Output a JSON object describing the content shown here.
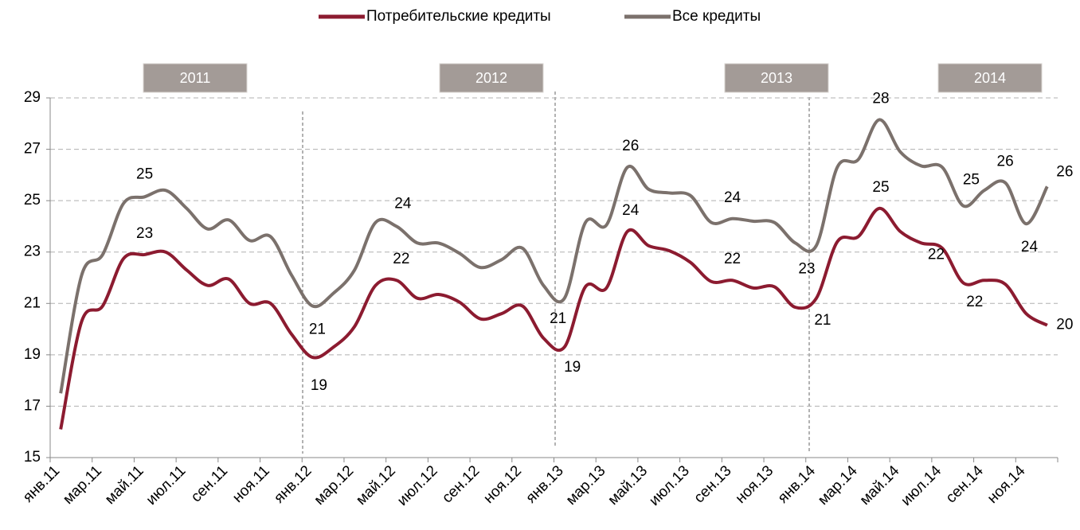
{
  "chart_data": {
    "type": "line",
    "categories": [
      "янв.11",
      null,
      "мар.11",
      null,
      "май.11",
      null,
      "июл.11",
      null,
      "сен.11",
      null,
      "ноя.11",
      null,
      "янв.12",
      null,
      "мар.12",
      null,
      "май.12",
      null,
      "июл.12",
      null,
      "сен.12",
      null,
      "ноя.12",
      null,
      "янв.13",
      null,
      "мар.13",
      null,
      "май.13",
      null,
      "июл.13",
      null,
      "сен.13",
      null,
      "ноя.13",
      null,
      "янв.14",
      null,
      "мар.14",
      null,
      "май.14",
      null,
      "июл.14",
      null,
      "сен.14",
      null,
      "ноя.14",
      null
    ],
    "series": [
      {
        "name": "Потребительские кредиты",
        "color": "#8c1b30",
        "values": [
          16.1,
          20.3,
          20.9,
          22.75,
          22.9,
          23.0,
          22.3,
          21.7,
          21.95,
          21.0,
          21.0,
          19.8,
          18.9,
          19.3,
          20.1,
          21.7,
          21.9,
          21.2,
          21.35,
          21.05,
          20.4,
          20.6,
          20.9,
          19.65,
          19.3,
          21.65,
          21.6,
          23.8,
          23.25,
          23.05,
          22.6,
          21.85,
          21.9,
          21.6,
          21.65,
          20.85,
          21.2,
          23.4,
          23.6,
          24.7,
          23.8,
          23.35,
          23.15,
          21.8,
          21.9,
          21.75,
          20.6,
          20.15
        ],
        "value_labels": [
          null,
          null,
          null,
          null,
          "23",
          null,
          null,
          null,
          null,
          null,
          null,
          null,
          "19",
          null,
          null,
          null,
          "22",
          null,
          null,
          null,
          null,
          null,
          null,
          null,
          "19",
          null,
          null,
          "24",
          null,
          null,
          null,
          null,
          "22",
          null,
          null,
          null,
          "21",
          null,
          null,
          "25",
          null,
          null,
          null,
          "22",
          "22",
          null,
          null,
          "20"
        ]
      },
      {
        "name": "Все кредиты",
        "color": "#7b716c",
        "values": [
          17.5,
          22.1,
          22.9,
          24.9,
          25.15,
          25.4,
          24.7,
          23.9,
          24.25,
          23.45,
          23.6,
          22.1,
          20.9,
          21.4,
          22.3,
          24.15,
          24.0,
          23.35,
          23.35,
          22.95,
          22.4,
          22.7,
          23.15,
          21.7,
          21.2,
          24.15,
          24.05,
          26.3,
          25.45,
          25.3,
          25.2,
          24.15,
          24.3,
          24.2,
          24.15,
          23.35,
          23.25,
          26.3,
          26.6,
          28.15,
          26.9,
          26.35,
          26.3,
          24.8,
          25.4,
          25.7,
          24.1,
          25.55
        ],
        "value_labels": [
          null,
          null,
          null,
          null,
          "25",
          null,
          null,
          null,
          null,
          null,
          null,
          null,
          "21",
          null,
          null,
          null,
          "24",
          null,
          null,
          null,
          null,
          null,
          null,
          null,
          "21",
          null,
          null,
          "26",
          null,
          null,
          null,
          null,
          "24",
          null,
          null,
          null,
          "23",
          null,
          null,
          "28",
          null,
          null,
          null,
          "25",
          null,
          "26",
          "24",
          "26"
        ]
      }
    ],
    "annotations": [
      "2011",
      "2012",
      "2013",
      "2014"
    ],
    "ylim": [
      15,
      29
    ],
    "yticks": [
      15,
      17,
      19,
      21,
      23,
      25,
      27,
      29
    ],
    "grid": true,
    "legend": "top"
  }
}
